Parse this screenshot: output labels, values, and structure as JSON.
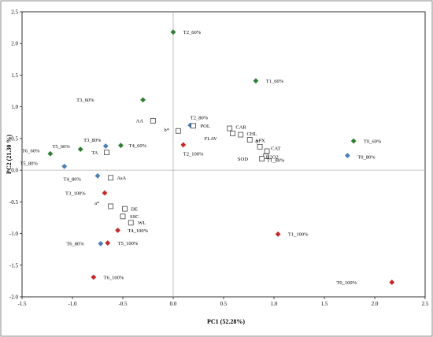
{
  "chart_data": {
    "type": "scatter",
    "title": "",
    "xlabel": "PC1 (52.28%)",
    "ylabel": "PC2 (21.30 %)",
    "xlim": [
      -1.5,
      2.5
    ],
    "ylim": [
      -2.0,
      2.5
    ],
    "xticks": [
      "-1.5",
      "-1.0",
      "-0.5",
      "0.0",
      "0.5",
      "1.0",
      "1.5",
      "2.0",
      "2.5"
    ],
    "yticks": [
      "-2.0",
      "-1.5",
      "-1.0",
      "-0.5",
      "0.0",
      "0.5",
      "1.0",
      "1.5",
      "2.0",
      "2.5"
    ],
    "grid": false,
    "legend": "none",
    "colors": {
      "60%": "#2e7d32",
      "80%": "#4a7fb5",
      "100%": "#c62828",
      "variables": "#444444"
    },
    "series": [
      {
        "marker": "diamond",
        "color": "60%",
        "points": [
          {
            "label": "T2_60%",
            "x": 0.0,
            "y": 2.18,
            "lx": 0.1,
            "ly": 0.0
          },
          {
            "label": "T1_60%",
            "x": 0.82,
            "y": 1.41,
            "lx": 0.1,
            "ly": 0.0
          },
          {
            "label": "T3_60%",
            "x": -0.3,
            "y": 1.11,
            "lx": -0.66,
            "ly": 0.0
          },
          {
            "label": "T0_60%",
            "x": 1.79,
            "y": 0.46,
            "lx": 0.1,
            "ly": 0.0
          },
          {
            "label": "T4_60%",
            "x": -0.52,
            "y": 0.39,
            "lx": 0.08,
            "ly": 0.0
          },
          {
            "label": "T5_60%",
            "x": -0.92,
            "y": 0.33,
            "lx": -0.28,
            "ly": 0.05
          },
          {
            "label": "T6_60%",
            "x": -1.22,
            "y": 0.26,
            "lx": -0.28,
            "ly": 0.05
          }
        ]
      },
      {
        "marker": "diamond",
        "color": "80%",
        "points": [
          {
            "label": "T2_80%",
            "x": 0.17,
            "y": 0.71,
            "lx": 0.0,
            "ly": 0.12
          },
          {
            "label": "T3_80%",
            "x": -0.67,
            "y": 0.38,
            "lx": -0.22,
            "ly": 0.1
          },
          {
            "label": "T0_80%",
            "x": 1.73,
            "y": 0.23,
            "lx": 0.1,
            "ly": -0.02
          },
          {
            "label": "T1_80%",
            "x": 0.93,
            "y": 0.28,
            "lx": 0.0,
            "ly": -0.12
          },
          {
            "label": "T5_80%",
            "x": -1.08,
            "y": 0.06,
            "lx": -0.44,
            "ly": 0.05
          },
          {
            "label": "T4_80%",
            "x": -0.75,
            "y": -0.09,
            "lx": -0.34,
            "ly": -0.05
          },
          {
            "label": "T6_80%",
            "x": -0.72,
            "y": -1.16,
            "lx": -0.34,
            "ly": 0.0
          }
        ]
      },
      {
        "marker": "diamond",
        "color": "100%",
        "points": [
          {
            "label": "T2_100%",
            "x": 0.1,
            "y": 0.4,
            "lx": 0.0,
            "ly": -0.14
          },
          {
            "label": "T3_100%",
            "x": -0.68,
            "y": -0.36,
            "lx": -0.39,
            "ly": 0.0
          },
          {
            "label": "T4_100%",
            "x": -0.55,
            "y": -0.95,
            "lx": 0.1,
            "ly": 0.0
          },
          {
            "label": "T5_100%",
            "x": -0.65,
            "y": -1.15,
            "lx": 0.1,
            "ly": 0.0
          },
          {
            "label": "T1_100%",
            "x": 1.04,
            "y": -1.01,
            "lx": 0.1,
            "ly": 0.0
          },
          {
            "label": "T6_100%",
            "x": -0.79,
            "y": -1.69,
            "lx": 0.1,
            "ly": 0.0
          },
          {
            "label": "T0_100%",
            "x": 2.17,
            "y": -1.77,
            "lx": -0.55,
            "ly": 0.0
          }
        ]
      },
      {
        "marker": "square",
        "color": "variables",
        "points": [
          {
            "label": "AA",
            "x": -0.2,
            "y": 0.78,
            "lx": -0.17,
            "ly": 0.0
          },
          {
            "label": "POL",
            "x": 0.2,
            "y": 0.7,
            "lx": 0.07,
            "ly": 0.0
          },
          {
            "label": "b*",
            "x": 0.05,
            "y": 0.62,
            "lx": -0.14,
            "ly": 0.02
          },
          {
            "label": "CAR",
            "x": 0.56,
            "y": 0.66,
            "lx": 0.06,
            "ly": 0.02
          },
          {
            "label": "CHL",
            "x": 0.67,
            "y": 0.56,
            "lx": 0.06,
            "ly": 0.02
          },
          {
            "label": "FLAV",
            "x": 0.59,
            "y": 0.58,
            "lx": -0.28,
            "ly": -0.08
          },
          {
            "label": "F",
            "x": 0.76,
            "y": 0.48,
            "lx": 0.06,
            "ly": -0.03
          },
          {
            "label": "TA",
            "x": -0.66,
            "y": 0.28,
            "lx": -0.15,
            "ly": 0.0
          },
          {
            "label": "APX",
            "x": 0.86,
            "y": 0.37,
            "lx": -0.05,
            "ly": 0.1
          },
          {
            "label": "CAT",
            "x": 0.93,
            "y": 0.3,
            "lx": 0.04,
            "ly": 0.05
          },
          {
            "label": "H2O2",
            "x": 0.92,
            "y": 0.22,
            "lx": 0.0,
            "ly": -0.01
          },
          {
            "label": "SOD",
            "x": 0.88,
            "y": 0.18,
            "lx": -0.24,
            "ly": 0.0
          },
          {
            "label": "AsA",
            "x": -0.62,
            "y": -0.12,
            "lx": 0.06,
            "ly": 0.0
          },
          {
            "label": "a*",
            "x": -0.62,
            "y": -0.57,
            "lx": -0.16,
            "ly": 0.05
          },
          {
            "label": "DE",
            "x": -0.48,
            "y": -0.61,
            "lx": 0.06,
            "ly": 0.0
          },
          {
            "label": "SSC",
            "x": -0.5,
            "y": -0.73,
            "lx": 0.07,
            "ly": 0.0
          },
          {
            "label": "WL",
            "x": -0.42,
            "y": -0.83,
            "lx": 0.07,
            "ly": 0.0
          }
        ]
      }
    ]
  }
}
